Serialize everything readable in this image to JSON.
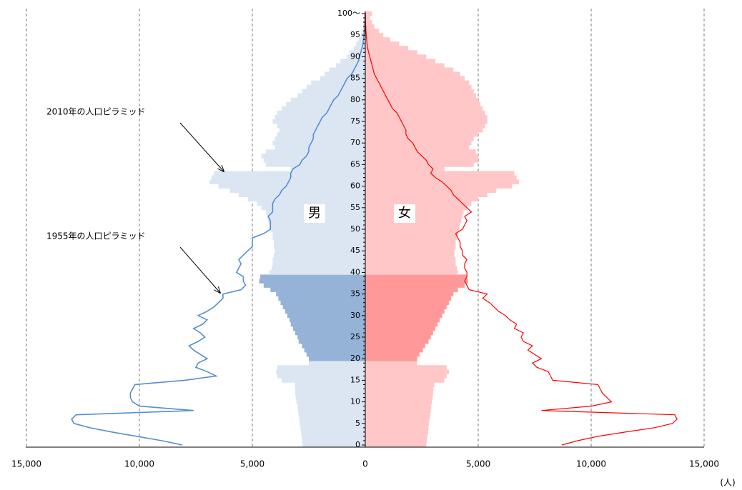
{
  "chart_data": {
    "type": "pyramid",
    "categories": [
      "0",
      null,
      null,
      null,
      null,
      "5",
      null,
      null,
      null,
      null,
      "10",
      null,
      null,
      null,
      null,
      "15",
      null,
      null,
      null,
      null,
      "20",
      null,
      null,
      null,
      null,
      "25",
      null,
      null,
      null,
      null,
      "30",
      null,
      null,
      null,
      null,
      "35",
      null,
      null,
      null,
      null,
      "40",
      null,
      null,
      null,
      null,
      "45",
      null,
      null,
      null,
      null,
      "50",
      null,
      null,
      null,
      null,
      "55",
      null,
      null,
      null,
      null,
      "60",
      null,
      null,
      null,
      null,
      "65",
      null,
      null,
      null,
      null,
      "70",
      null,
      null,
      null,
      null,
      "75",
      null,
      null,
      null,
      null,
      "80",
      null,
      null,
      null,
      null,
      "85",
      null,
      null,
      null,
      null,
      "90",
      null,
      null,
      null,
      null,
      "95",
      null,
      null,
      null,
      null,
      "100～"
    ],
    "highlight_range": [
      20,
      39
    ],
    "male_2010": {
      "label": "男",
      "color": "#dce6f2",
      "highlight_color": "#95b3d7",
      "values": [
        2780,
        2800,
        2820,
        2850,
        2870,
        2900,
        2920,
        2950,
        2980,
        3000,
        3050,
        3080,
        3100,
        3100,
        3120,
        3700,
        3900,
        3950,
        3900,
        2500,
        2500,
        2600,
        2700,
        2800,
        2950,
        3000,
        3100,
        3200,
        3300,
        3350,
        3450,
        3550,
        3650,
        3750,
        3850,
        3950,
        4200,
        4500,
        4700,
        4650,
        4250,
        4150,
        4100,
        4100,
        4050,
        4000,
        4050,
        4050,
        4100,
        4100,
        4200,
        4250,
        4300,
        4350,
        4400,
        4600,
        4800,
        5200,
        5600,
        6000,
        6500,
        6900,
        6800,
        6700,
        3300,
        4400,
        4500,
        4600,
        4400,
        4000,
        4100,
        4000,
        3900,
        3800,
        3900,
        4100,
        4000,
        3900,
        3700,
        3500,
        3300,
        3000,
        2800,
        2600,
        2400,
        2000,
        1800,
        1600,
        1300,
        1100,
        800,
        700,
        500,
        400,
        300,
        200,
        150,
        100,
        80,
        50,
        40
      ]
    },
    "female_2010": {
      "label": "女",
      "color": "#ffc7c7",
      "highlight_color": "#ff9999",
      "values": [
        2700,
        2720,
        2750,
        2780,
        2800,
        2820,
        2850,
        2870,
        2900,
        2920,
        2950,
        2980,
        3000,
        3020,
        3050,
        3500,
        3600,
        3700,
        3600,
        2300,
        2300,
        2400,
        2550,
        2650,
        2800,
        2900,
        3000,
        3100,
        3200,
        3300,
        3400,
        3500,
        3600,
        3700,
        3800,
        3900,
        4100,
        4400,
        4550,
        4500,
        4100,
        4050,
        4000,
        4000,
        3950,
        3950,
        4000,
        4000,
        4050,
        4100,
        4150,
        4200,
        4250,
        4300,
        4350,
        4500,
        4700,
        5000,
        5400,
        5800,
        6500,
        6800,
        6700,
        6600,
        3500,
        4800,
        5000,
        5000,
        4900,
        4600,
        4700,
        4800,
        5000,
        5200,
        5300,
        5400,
        5400,
        5300,
        5200,
        5100,
        5000,
        4900,
        4800,
        4700,
        4600,
        4400,
        4200,
        3900,
        3500,
        3100,
        2700,
        2300,
        1900,
        1500,
        1100,
        800,
        600,
        400,
        300,
        200,
        300
      ]
    },
    "male_1955": {
      "color": "#558ed5",
      "values": [
        8100,
        9000,
        10100,
        11200,
        12200,
        12900,
        13000,
        12800,
        7600,
        10000,
        10300,
        10400,
        10400,
        10300,
        10200,
        8000,
        6600,
        7000,
        7500,
        7400,
        7000,
        7300,
        7600,
        7800,
        7400,
        7100,
        7300,
        7600,
        7200,
        7000,
        7400,
        7000,
        6700,
        6500,
        6300,
        6300,
        5500,
        5300,
        5400,
        5400,
        5700,
        5600,
        5500,
        5600,
        5400,
        5200,
        5000,
        5000,
        5000,
        4500,
        4200,
        4200,
        4200,
        4300,
        4100,
        4100,
        4100,
        4000,
        3800,
        3700,
        3500,
        3400,
        3300,
        3300,
        3200,
        2900,
        2800,
        2600,
        2500,
        2500,
        2400,
        2300,
        2300,
        2200,
        2100,
        2000,
        1900,
        1700,
        1600,
        1500,
        1400,
        1200,
        1100,
        1000,
        900,
        800,
        600,
        500,
        400,
        300,
        250,
        200,
        150,
        100,
        80,
        60,
        40,
        30,
        20,
        10,
        10
      ]
    },
    "female_1955": {
      "color": "#ff0000",
      "values": [
        8700,
        9400,
        10300,
        11500,
        12800,
        13600,
        13800,
        13700,
        7800,
        10000,
        10900,
        10700,
        10500,
        10400,
        10300,
        8300,
        8200,
        8100,
        7600,
        7400,
        7800,
        7500,
        7200,
        7400,
        7000,
        6900,
        7000,
        6600,
        6700,
        6400,
        6200,
        5900,
        5700,
        5500,
        5200,
        5400,
        4600,
        4500,
        4400,
        4500,
        4500,
        4400,
        4400,
        4500,
        4300,
        4300,
        4200,
        4200,
        4100,
        4000,
        4300,
        4400,
        4500,
        4400,
        4700,
        4500,
        4300,
        4100,
        3900,
        3800,
        3600,
        3400,
        3100,
        2900,
        3000,
        2800,
        2700,
        2500,
        2300,
        2200,
        2100,
        1900,
        1800,
        1800,
        1700,
        1600,
        1500,
        1400,
        1200,
        1100,
        1000,
        900,
        800,
        700,
        600,
        500,
        400,
        350,
        300,
        250,
        200,
        150,
        100,
        80,
        60,
        40,
        30,
        20,
        10,
        10,
        10
      ]
    },
    "xlim": [
      0,
      15000
    ],
    "xticks_left": [
      {
        "value": 15000,
        "label": "15,000"
      },
      {
        "value": 10000,
        "label": "10,000"
      },
      {
        "value": 5000,
        "label": "5,000"
      }
    ],
    "xticks": [
      0,
      {
        "value": 5000,
        "label": "5,000"
      },
      {
        "value": 10000,
        "label": "10,000"
      },
      {
        "value": 15000,
        "label": "15,000"
      }
    ],
    "unit": "(人)",
    "annotations": [
      "2010年の人口ピラミッド",
      "1955年の人口ピラミッド"
    ],
    "grid": true
  }
}
